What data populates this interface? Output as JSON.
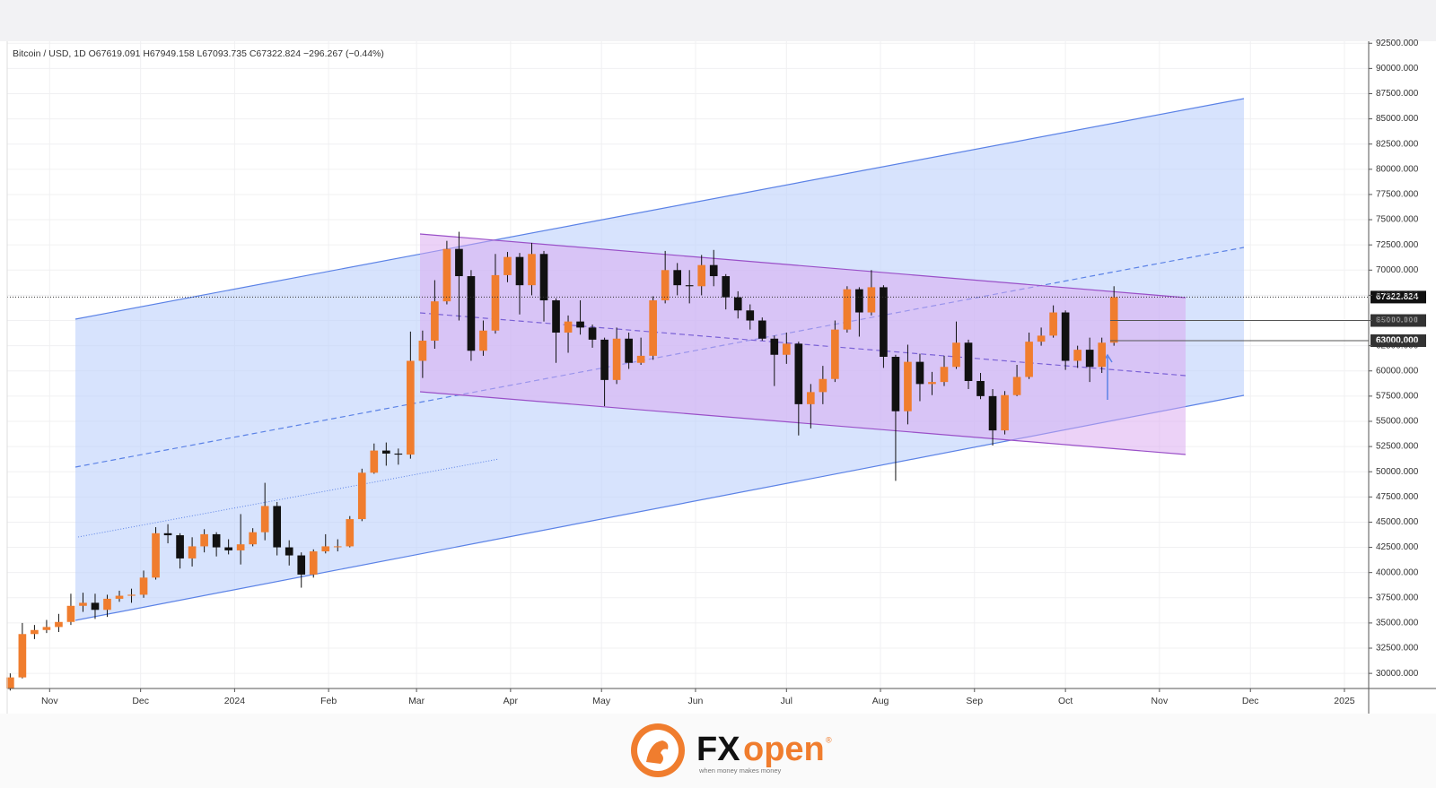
{
  "chart_data": {
    "type": "candlestick",
    "title": "Bitcoin / USD, 1D  O67619.091  H67949.158  L67093.735  C67322.824  −296.267 (−0.44%)",
    "x": [
      -13,
      -9,
      -5,
      -1,
      3,
      7,
      11,
      15,
      19,
      23,
      27,
      31,
      35,
      39,
      43,
      47,
      51,
      55,
      59,
      63,
      67,
      71,
      75,
      79,
      83,
      87,
      91,
      95,
      99,
      103,
      107,
      111,
      115,
      119,
      123,
      127,
      131,
      135,
      139,
      143,
      147,
      151,
      155,
      159,
      163,
      167,
      171,
      175,
      179,
      183,
      187,
      191,
      195,
      199,
      203,
      207,
      211,
      215,
      219,
      223,
      227,
      231,
      235,
      239,
      243,
      247,
      251,
      255,
      259,
      263,
      267,
      271,
      275,
      279,
      283,
      287,
      291,
      295,
      299,
      303,
      307,
      311,
      315,
      319,
      323,
      327,
      331,
      335,
      339,
      343,
      347,
      351
    ],
    "open": [
      28500,
      29600,
      33900,
      34300,
      34600,
      35100,
      36700,
      37000,
      36300,
      37400,
      37700,
      37800,
      39500,
      43900,
      43700,
      41400,
      42600,
      43800,
      42500,
      42200,
      42800,
      44000,
      46600,
      42500,
      41700,
      39800,
      42100,
      42600,
      42600,
      45300,
      49900,
      52100,
      51800,
      51700,
      61000,
      63000,
      66900,
      72100,
      69400,
      62000,
      64000,
      69500,
      71300,
      68500,
      71600,
      67000,
      63800,
      64900,
      64300,
      63100,
      59100,
      63200,
      60800,
      61500,
      67000,
      70000,
      68500,
      68400,
      70500,
      69400,
      67300,
      66000,
      65000,
      63200,
      61600,
      62700,
      56700,
      57900,
      59200,
      64100,
      68100,
      65800,
      68300,
      61400,
      56000,
      60900,
      58700,
      58900,
      60400,
      62800,
      59000,
      57500,
      54100,
      57600,
      59400,
      62900,
      63500,
      65800,
      61000,
      62100,
      60400,
      62800
    ],
    "high": [
      30000,
      35000,
      34800,
      35300,
      35900,
      37900,
      38000,
      37900,
      37800,
      38200,
      38400,
      40200,
      44500,
      44800,
      43900,
      43500,
      44300,
      44000,
      43300,
      45800,
      44400,
      48900,
      47000,
      43200,
      42000,
      42300,
      43800,
      43300,
      45600,
      50300,
      52800,
      52900,
      52300,
      63900,
      64000,
      69000,
      72900,
      73800,
      70000,
      65000,
      71600,
      71800,
      71700,
      72700,
      71900,
      67200,
      65500,
      67000,
      64600,
      63300,
      64300,
      63800,
      63300,
      67400,
      71900,
      70700,
      70000,
      71500,
      72000,
      69600,
      67900,
      66600,
      65300,
      63500,
      63800,
      62900,
      58700,
      60500,
      65000,
      68400,
      68300,
      70000,
      68500,
      61600,
      62600,
      61700,
      59900,
      61500,
      64900,
      63100,
      59800,
      58200,
      58000,
      60600,
      63800,
      64300,
      66500,
      66000,
      62500,
      63300,
      63300,
      68400
    ],
    "low": [
      28300,
      29500,
      33400,
      34000,
      34100,
      34800,
      36100,
      35400,
      35600,
      37100,
      37000,
      37500,
      39300,
      42900,
      40400,
      40600,
      42000,
      41600,
      41800,
      40800,
      42600,
      43200,
      41700,
      40700,
      38500,
      39500,
      41900,
      42100,
      42500,
      45100,
      49800,
      50600,
      50700,
      51300,
      59300,
      62200,
      66600,
      65000,
      61000,
      61500,
      63700,
      68800,
      65600,
      67500,
      64900,
      60800,
      61800,
      63600,
      62300,
      56500,
      58700,
      60200,
      60600,
      61100,
      66700,
      67500,
      66700,
      67500,
      68400,
      66100,
      65200,
      64100,
      63000,
      58500,
      60700,
      53600,
      54300,
      56700,
      58900,
      63800,
      63400,
      65500,
      60300,
      49100,
      54700,
      57000,
      57600,
      58500,
      60200,
      58200,
      57200,
      52600,
      53700,
      57500,
      59200,
      62500,
      63300,
      60100,
      60300,
      58900,
      59800,
      62500
    ],
    "close": [
      29600,
      33900,
      34300,
      34600,
      35100,
      36700,
      37000,
      36300,
      37400,
      37700,
      37800,
      39500,
      43900,
      43700,
      41400,
      42600,
      43800,
      42500,
      42200,
      42800,
      44000,
      46600,
      42500,
      41700,
      39800,
      42100,
      42600,
      42600,
      45300,
      49900,
      52100,
      51800,
      51700,
      61000,
      63000,
      66900,
      72100,
      69400,
      62000,
      64000,
      69500,
      71300,
      68500,
      71600,
      67000,
      63800,
      64900,
      64300,
      63100,
      59100,
      63200,
      60800,
      61500,
      67000,
      70000,
      68500,
      68400,
      70500,
      69400,
      67300,
      66000,
      65000,
      63200,
      61600,
      62700,
      56700,
      57900,
      59200,
      64100,
      68100,
      65800,
      68300,
      61400,
      56000,
      60900,
      58700,
      58900,
      60400,
      62800,
      59000,
      57500,
      54100,
      57600,
      59400,
      62900,
      63500,
      65800,
      61000,
      62100,
      60400,
      62800,
      67322.824
    ],
    "up_color": "#f07d2e",
    "down_color": "#111111",
    "xlim": [
      -14,
      435
    ],
    "xticks": [
      {
        "value": 0,
        "label": "Nov"
      },
      {
        "value": 30,
        "label": "Dec"
      },
      {
        "value": 61,
        "label": "2024"
      },
      {
        "value": 92,
        "label": "Feb"
      },
      {
        "value": 121,
        "label": "Mar"
      },
      {
        "value": 152,
        "label": "Apr"
      },
      {
        "value": 182,
        "label": "May"
      },
      {
        "value": 213,
        "label": "Jun"
      },
      {
        "value": 243,
        "label": "Jul"
      },
      {
        "value": 274,
        "label": "Aug"
      },
      {
        "value": 305,
        "label": "Sep"
      },
      {
        "value": 335,
        "label": "Oct"
      },
      {
        "value": 366,
        "label": "Nov"
      },
      {
        "value": 396,
        "label": "Dec"
      },
      {
        "value": 427,
        "label": "2025"
      }
    ],
    "ylim": [
      28500,
      92700
    ],
    "yticks": [
      {
        "value": 30000,
        "label": "30000.000"
      },
      {
        "value": 32500,
        "label": "32500.000"
      },
      {
        "value": 35000,
        "label": "35000.000"
      },
      {
        "value": 37500,
        "label": "37500.000"
      },
      {
        "value": 40000,
        "label": "40000.000"
      },
      {
        "value": 42500,
        "label": "42500.000"
      },
      {
        "value": 45000,
        "label": "45000.000"
      },
      {
        "value": 47500,
        "label": "47500.000"
      },
      {
        "value": 50000,
        "label": "50000.000"
      },
      {
        "value": 52500,
        "label": "52500.000"
      },
      {
        "value": 55000,
        "label": "55000.000"
      },
      {
        "value": 57500,
        "label": "57500.000"
      },
      {
        "value": 60000,
        "label": "60000.000"
      },
      {
        "value": 62500,
        "label": "62500.000"
      },
      {
        "value": 65000,
        "label": "65000.000"
      },
      {
        "value": 67500,
        "label": "67500.000"
      },
      {
        "value": 70000,
        "label": "70000.000"
      },
      {
        "value": 72500,
        "label": "72500.000"
      },
      {
        "value": 75000,
        "label": "75000.000"
      },
      {
        "value": 77500,
        "label": "77500.000"
      },
      {
        "value": 80000,
        "label": "80000.000"
      },
      {
        "value": 82500,
        "label": "82500.000"
      },
      {
        "value": 85000,
        "label": "85000.000"
      },
      {
        "value": 87500,
        "label": "87500.000"
      },
      {
        "value": 90000,
        "label": "90000.000"
      },
      {
        "value": 92500,
        "label": "92500.000"
      }
    ],
    "grid": true,
    "last_price": 67322.824,
    "levels": [
      {
        "value": 65000,
        "label": "65000.000"
      },
      {
        "value": 63000,
        "label": "63000.000"
      }
    ]
  },
  "branding": {
    "logo_fx": "FX",
    "logo_open": "open",
    "mark": "®",
    "tagline": "when money makes money"
  }
}
